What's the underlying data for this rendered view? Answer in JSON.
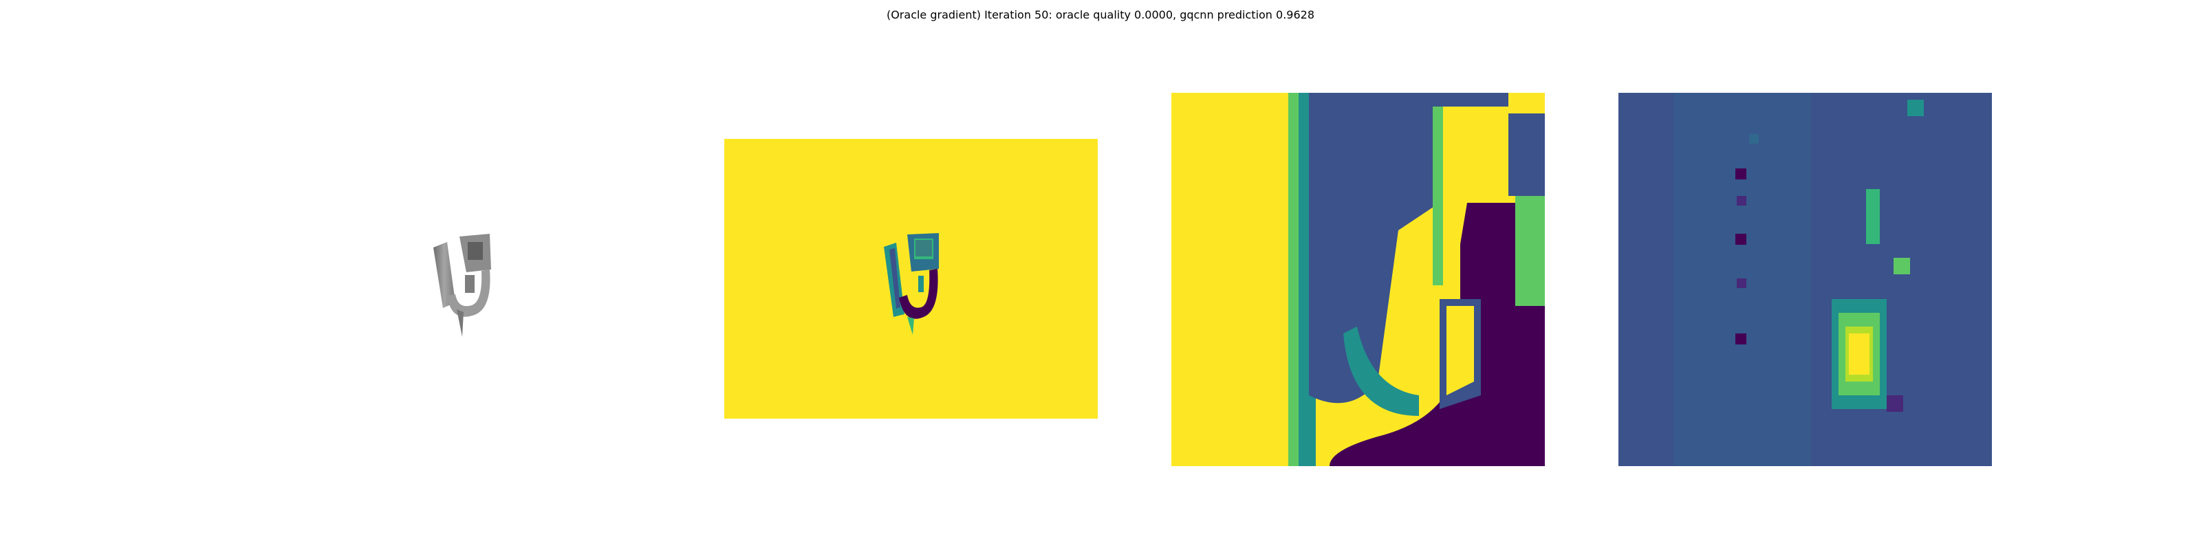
{
  "title": "(Oracle gradient) Iteration 50: oracle quality 0.0000, gqcnn prediction 0.9628",
  "panels": [
    {
      "name": "rendered-object",
      "colormap": "gray"
    },
    {
      "name": "depth-image",
      "colormap": "viridis"
    },
    {
      "name": "depth-crop",
      "colormap": "viridis"
    },
    {
      "name": "gradient-map",
      "colormap": "viridis"
    }
  ],
  "colors": {
    "viridis_yellow": "#fde725",
    "viridis_green": "#5ec962",
    "viridis_teal": "#21918c",
    "viridis_blue": "#3b528b",
    "viridis_purple": "#440154",
    "object_gray": "#8a8a8a"
  }
}
